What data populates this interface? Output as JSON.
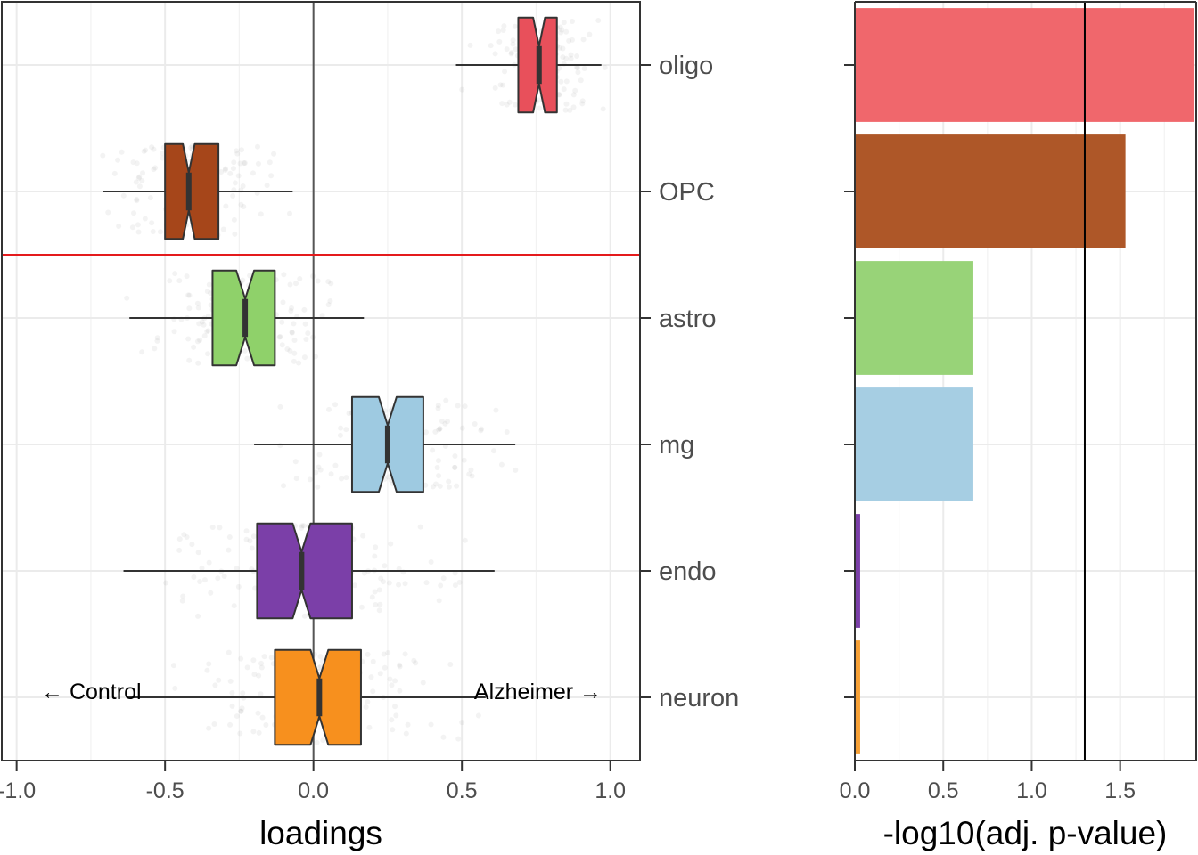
{
  "chart_data": [
    {
      "type": "box",
      "xlabel": "loadings",
      "xlim": [
        -1.05,
        1.1
      ],
      "xticks": [
        -1.0,
        -0.5,
        0.0,
        0.5,
        1.0
      ],
      "xtick_labels": [
        "-1.0",
        "-0.5",
        "0.0",
        "0.5",
        "1.0"
      ],
      "categories": [
        "oligo",
        "OPC",
        "astro",
        "mg",
        "endo",
        "neuron"
      ],
      "boxes": [
        {
          "category": "oligo",
          "color": "#E8505B",
          "whisker_low": 0.48,
          "q1": 0.69,
          "median": 0.76,
          "q3": 0.82,
          "whisker_high": 0.97,
          "notch": [
            0.74,
            0.78
          ]
        },
        {
          "category": "OPC",
          "color": "#A6461A",
          "whisker_low": -0.71,
          "q1": -0.5,
          "median": -0.42,
          "q3": -0.32,
          "whisker_high": -0.07,
          "notch": [
            -0.44,
            -0.4
          ]
        },
        {
          "category": "astro",
          "color": "#8FD16A",
          "whisker_low": -0.62,
          "q1": -0.34,
          "median": -0.23,
          "q3": -0.13,
          "whisker_high": 0.17,
          "notch": [
            -0.26,
            -0.2
          ]
        },
        {
          "category": "mg",
          "color": "#9ECAE1",
          "whisker_low": -0.2,
          "q1": 0.13,
          "median": 0.25,
          "q3": 0.37,
          "whisker_high": 0.68,
          "notch": [
            0.22,
            0.28
          ]
        },
        {
          "category": "endo",
          "color": "#7B3FA8",
          "whisker_low": -0.64,
          "q1": -0.19,
          "median": -0.04,
          "q3": 0.13,
          "whisker_high": 0.61,
          "notch": [
            -0.07,
            -0.01
          ]
        },
        {
          "category": "neuron",
          "color": "#F7901E",
          "whisker_low": -0.63,
          "q1": -0.13,
          "median": 0.02,
          "q3": 0.16,
          "whisker_high": 0.58,
          "notch": [
            -0.01,
            0.05
          ]
        }
      ],
      "reference_line_x": 0.0,
      "separator_between": [
        "OPC",
        "astro"
      ],
      "separator_color": "#E41A1C",
      "annotations": {
        "left": "← Control",
        "right": "Alzheimer →"
      },
      "grid": true
    },
    {
      "type": "bar",
      "orientation": "horizontal",
      "xlabel": "-log10(adj. p-value)",
      "xlim": [
        0,
        1.93
      ],
      "xticks": [
        0.0,
        0.5,
        1.0,
        1.5
      ],
      "xtick_labels": [
        "0.0",
        "0.5",
        "1.0",
        "1.5"
      ],
      "categories": [
        "oligo",
        "OPC",
        "astro",
        "mg",
        "endo",
        "neuron"
      ],
      "values": [
        1.92,
        1.53,
        0.67,
        0.67,
        0.03,
        0.03
      ],
      "colors": [
        "#F0676C",
        "#AE5728",
        "#98D378",
        "#A6CEE3",
        "#7B3FA8",
        "#F7A035"
      ],
      "threshold_x": 1.3,
      "grid": true
    }
  ]
}
